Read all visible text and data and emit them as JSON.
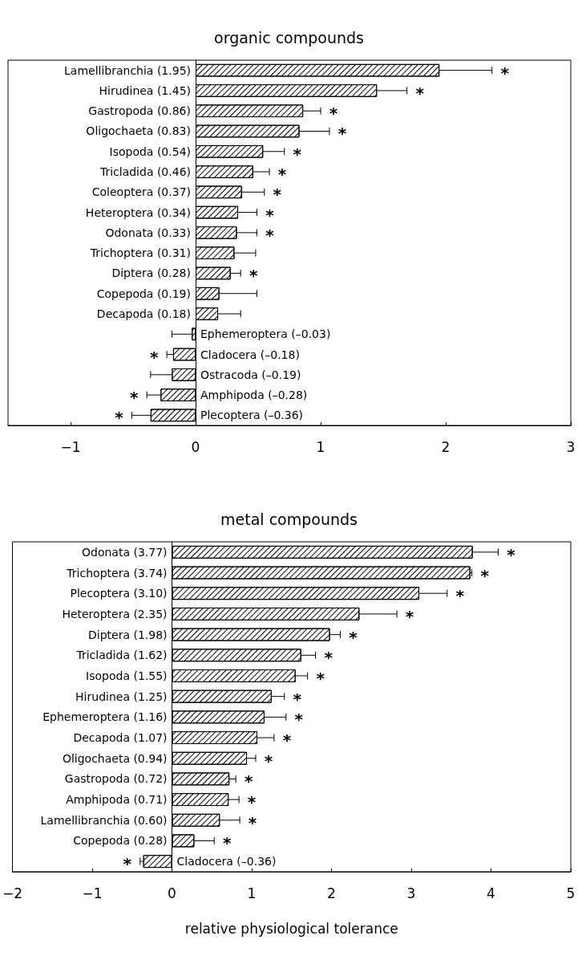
{
  "chart_data": [
    {
      "type": "bar",
      "orientation": "horizontal",
      "title": "organic compounds",
      "color": "#ffffff",
      "grid": false,
      "categories": [
        "Lamellibranchia (1.95)",
        "Hirudinea (1.45)",
        "Gastropoda (0.86)",
        "Oligochaeta (0.83)",
        "Isopoda (0.54)",
        "Tricladida (0.46)",
        "Coleoptera (0.37)",
        "Heteroptera (0.34)",
        "Odonata (0.33)",
        "Trichoptera (0.31)",
        "Diptera (0.28)",
        "Copepoda (0.19)",
        "Decapoda (0.18)",
        "Ephemeroptera (–0.03)",
        "Cladocera (–0.18)",
        "Ostracoda (–0.19)",
        "Amphipoda (–0.28)",
        "Plecoptera (–0.36)"
      ],
      "values": [
        1.95,
        1.45,
        0.86,
        0.83,
        0.54,
        0.46,
        0.37,
        0.34,
        0.33,
        0.31,
        0.28,
        0.19,
        0.18,
        -0.03,
        -0.18,
        -0.19,
        -0.28,
        -0.36
      ],
      "errors": [
        [
          1.95,
          2.37
        ],
        [
          1.45,
          1.69
        ],
        [
          0.86,
          1.0
        ],
        [
          0.83,
          1.07
        ],
        [
          0.54,
          0.71
        ],
        [
          0.46,
          0.59
        ],
        [
          0.37,
          0.55
        ],
        [
          0.34,
          0.49
        ],
        [
          0.33,
          0.49
        ],
        [
          0.31,
          0.48
        ],
        [
          0.28,
          0.36
        ],
        [
          0.19,
          0.49
        ],
        [
          0.18,
          0.36
        ],
        [
          -0.19,
          -0.03
        ],
        [
          -0.23,
          -0.18
        ],
        [
          -0.36,
          -0.19
        ],
        [
          -0.39,
          -0.28
        ],
        [
          -0.51,
          -0.36
        ]
      ],
      "xlim": [
        -1.5,
        3
      ],
      "xticks": [
        -1,
        0,
        1,
        2,
        3
      ],
      "annotations": [
        {
          "text": "*",
          "x": 2.37,
          "y": "Lamellibranchia (1.95)"
        },
        {
          "text": "*",
          "x": 1.69,
          "y": "Hirudinea (1.45)"
        },
        {
          "text": "*",
          "x": 1.0,
          "y": "Gastropoda (0.86)"
        },
        {
          "text": "*",
          "x": 1.07,
          "y": "Oligochaeta (0.83)"
        },
        {
          "text": "*",
          "x": 0.71,
          "y": "Isopoda (0.54)"
        },
        {
          "text": "*",
          "x": 0.59,
          "y": "Tricladida (0.46)"
        },
        {
          "text": "*",
          "x": 0.55,
          "y": "Coleoptera (0.37)"
        },
        {
          "text": "*",
          "x": 0.49,
          "y": "Heteroptera (0.34)"
        },
        {
          "text": "*",
          "x": 0.49,
          "y": "Odonata (0.33)"
        },
        {
          "text": "*",
          "x": 0.36,
          "y": "Diptera (0.28)"
        },
        {
          "text": "*",
          "x": -0.23,
          "y": "Cladocera (–0.18)"
        },
        {
          "text": "*",
          "x": -0.39,
          "y": "Amphipoda (–0.28)"
        },
        {
          "text": "*",
          "x": -0.51,
          "y": "Plecoptera (–0.36)"
        }
      ]
    },
    {
      "type": "bar",
      "orientation": "horizontal",
      "title": "metal compounds",
      "xlabel": "relative physiological tolerance",
      "color": "#ffffff",
      "grid": false,
      "categories": [
        "Odonata (3.77)",
        "Trichoptera (3.74)",
        "Plecoptera (3.10)",
        "Heteroptera (2.35)",
        "Diptera (1.98)",
        "Tricladida (1.62)",
        "Isopoda (1.55)",
        "Hirudinea (1.25)",
        "Ephemeroptera (1.16)",
        "Decapoda (1.07)",
        "Oligochaeta (0.94)",
        "Gastropoda (0.72)",
        "Amphipoda (0.71)",
        "Lamellibranchia (0.60)",
        "Copepoda (0.28)",
        "Cladocera (–0.36)"
      ],
      "values": [
        3.77,
        3.74,
        3.1,
        2.35,
        1.98,
        1.62,
        1.55,
        1.25,
        1.16,
        1.07,
        0.94,
        0.72,
        0.71,
        0.6,
        0.28,
        -0.36
      ],
      "errors": [
        [
          3.77,
          4.09
        ],
        [
          3.74,
          3.76
        ],
        [
          3.1,
          3.45
        ],
        [
          2.35,
          2.82
        ],
        [
          1.98,
          2.11
        ],
        [
          1.62,
          1.8
        ],
        [
          1.55,
          1.7
        ],
        [
          1.25,
          1.41
        ],
        [
          1.16,
          1.43
        ],
        [
          1.07,
          1.28
        ],
        [
          0.94,
          1.05
        ],
        [
          0.72,
          0.8
        ],
        [
          0.71,
          0.84
        ],
        [
          0.6,
          0.85
        ],
        [
          0.28,
          0.53
        ],
        [
          -0.4,
          -0.36
        ]
      ],
      "xlim": [
        -2,
        5
      ],
      "xticks": [
        -2,
        -1,
        0,
        1,
        2,
        3,
        4,
        5
      ],
      "annotations": [
        {
          "text": "*",
          "x": 4.09,
          "y": "Odonata (3.77)"
        },
        {
          "text": "*",
          "x": 3.76,
          "y": "Trichoptera (3.74)"
        },
        {
          "text": "*",
          "x": 3.45,
          "y": "Plecoptera (3.10)"
        },
        {
          "text": "*",
          "x": 2.82,
          "y": "Heteroptera (2.35)"
        },
        {
          "text": "*",
          "x": 2.11,
          "y": "Diptera (1.98)"
        },
        {
          "text": "*",
          "x": 1.8,
          "y": "Tricladida (1.62)"
        },
        {
          "text": "*",
          "x": 1.7,
          "y": "Isopoda (1.55)"
        },
        {
          "text": "*",
          "x": 1.41,
          "y": "Hirudinea (1.25)"
        },
        {
          "text": "*",
          "x": 1.43,
          "y": "Ephemeroptera (1.16)"
        },
        {
          "text": "*",
          "x": 1.28,
          "y": "Decapoda (1.07)"
        },
        {
          "text": "*",
          "x": 1.05,
          "y": "Oligochaeta (0.94)"
        },
        {
          "text": "*",
          "x": 0.8,
          "y": "Gastropoda (0.72)"
        },
        {
          "text": "*",
          "x": 0.84,
          "y": "Amphipoda (0.71)"
        },
        {
          "text": "*",
          "x": 0.85,
          "y": "Lamellibranchia (0.60)"
        },
        {
          "text": "*",
          "x": 0.53,
          "y": "Copepoda (0.28)"
        },
        {
          "text": "*",
          "x": -0.4,
          "y": "Cladocera (–0.36)"
        }
      ]
    }
  ]
}
